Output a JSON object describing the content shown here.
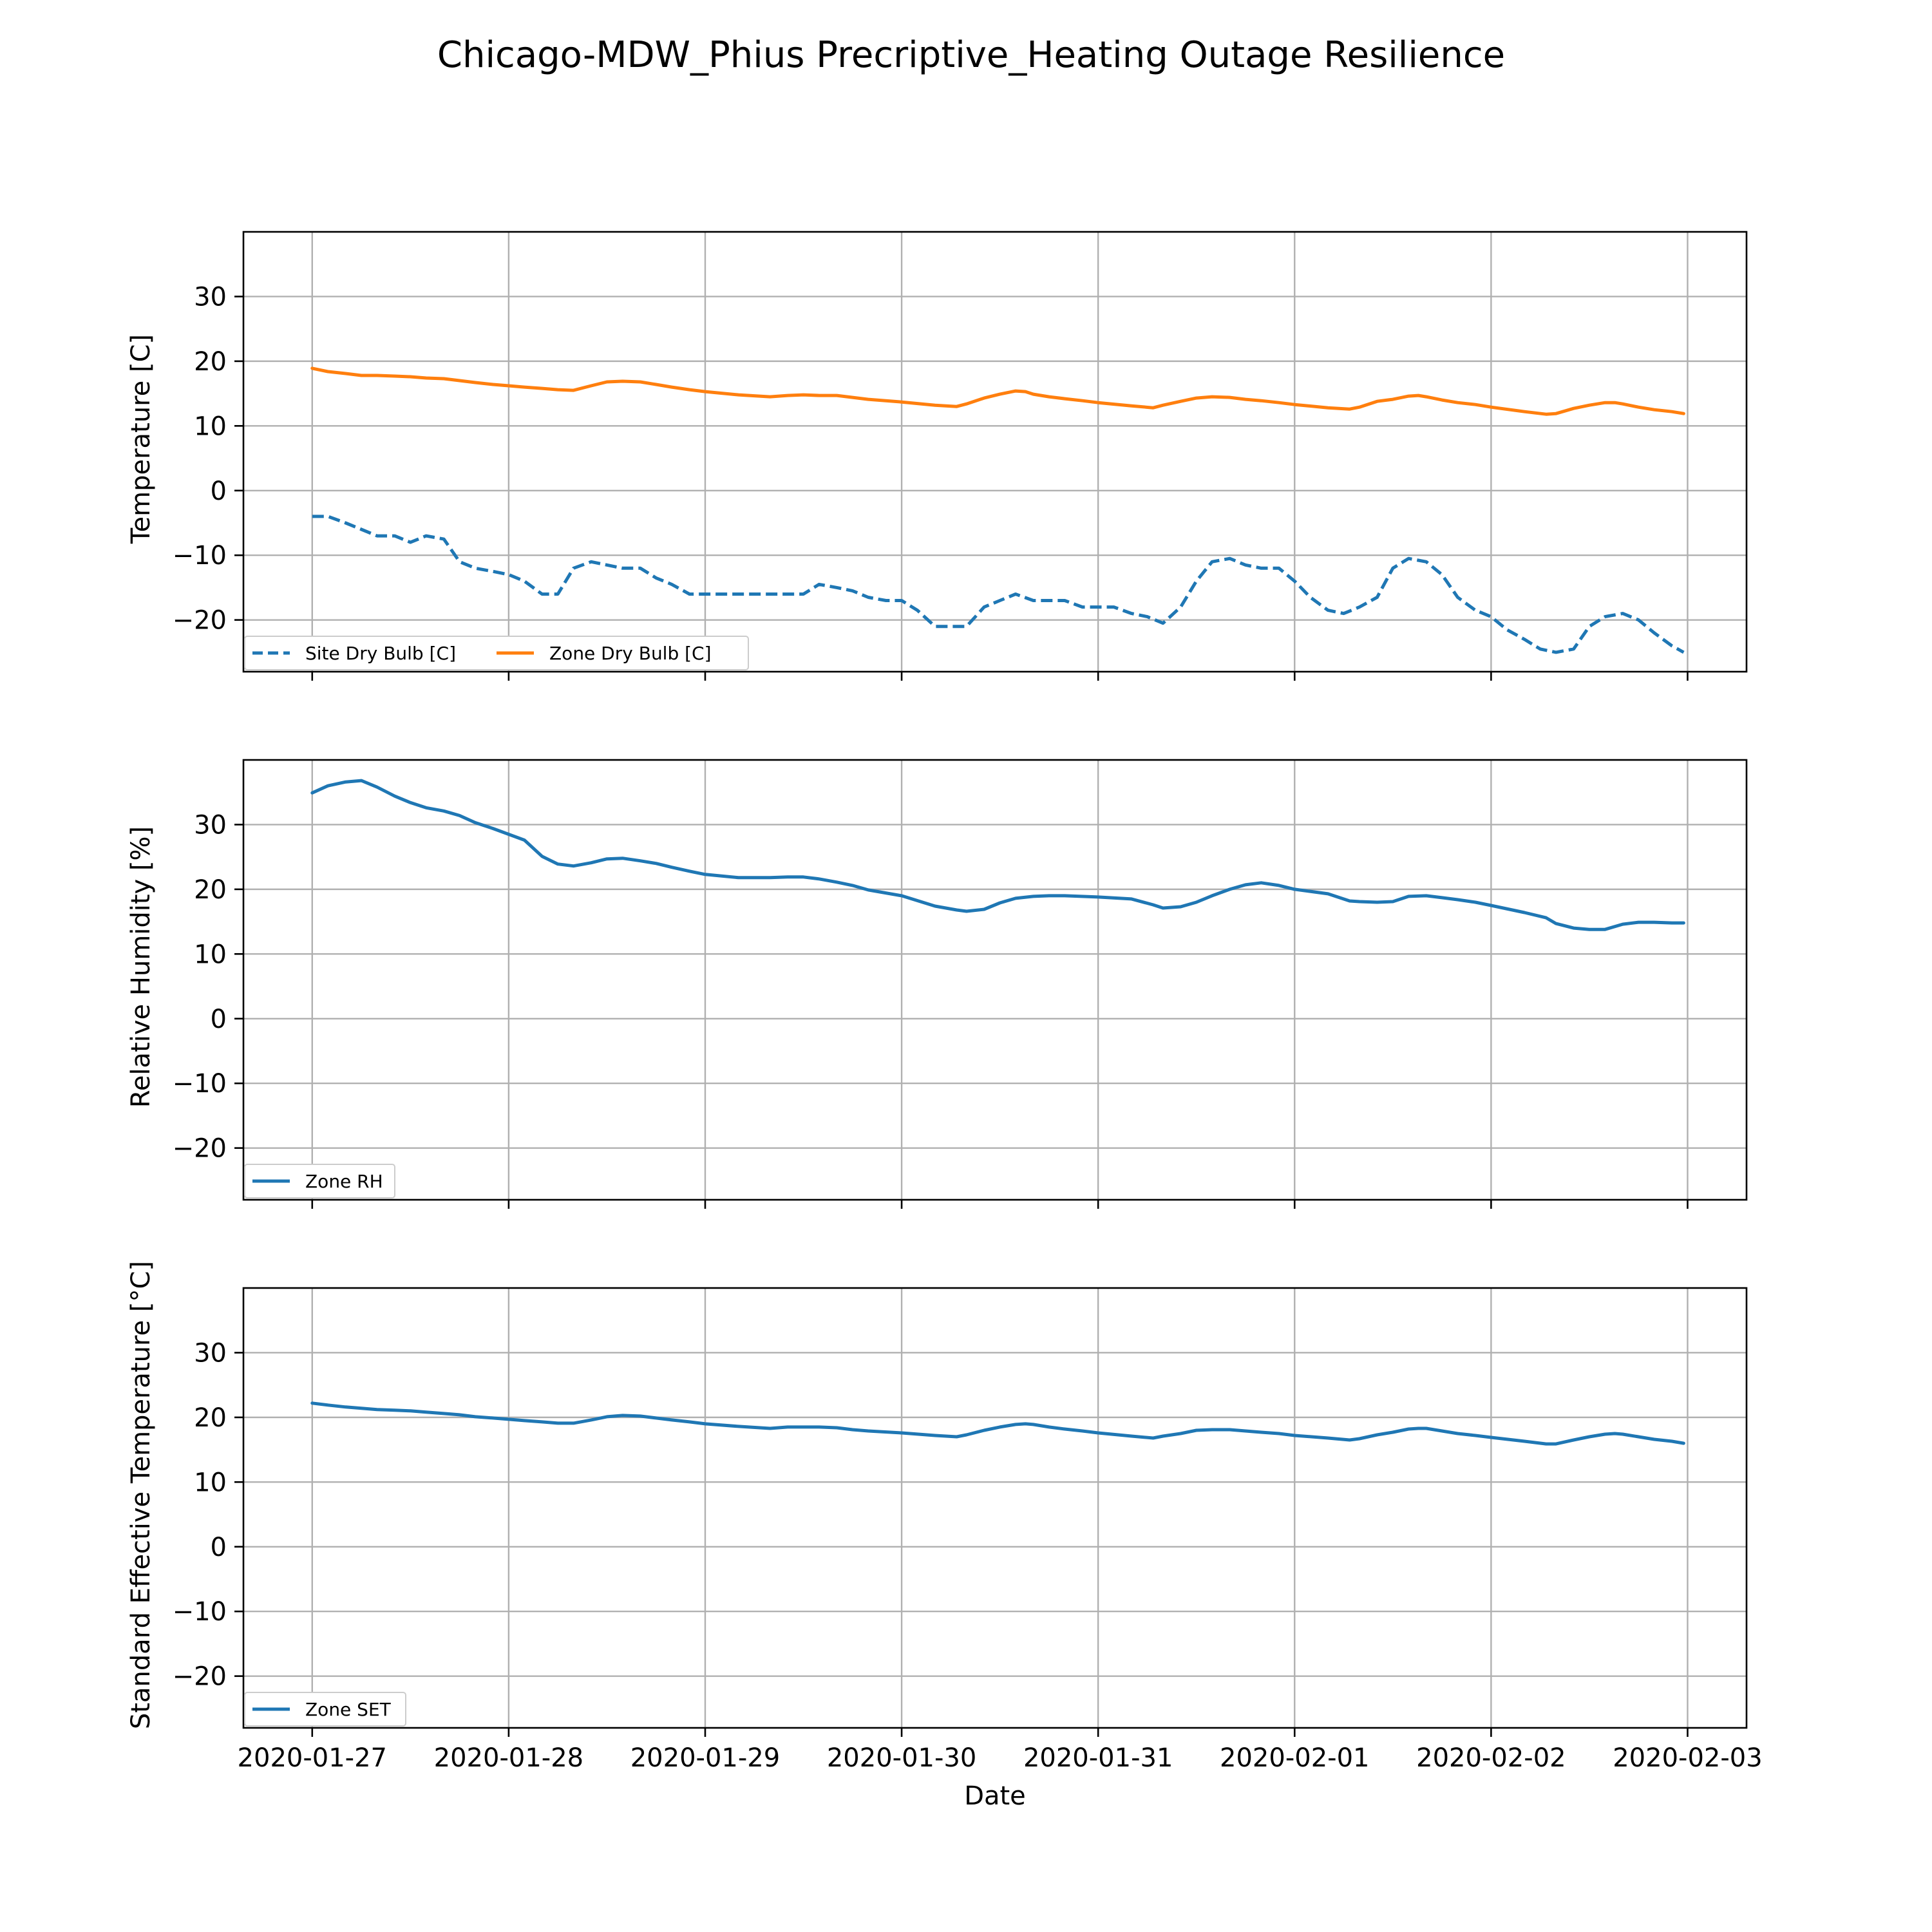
{
  "chart_data": {
    "title": "Chicago-MDW_Phius Precriptive_Heating Outage Resilience",
    "type": "line",
    "xlabel": "Date",
    "x_ticks": [
      "2020-01-27",
      "2020-01-28",
      "2020-01-29",
      "2020-01-30",
      "2020-01-31",
      "2020-02-01",
      "2020-02-02",
      "2020-02-03"
    ],
    "x_range_days": [
      -0.35,
      7.3
    ],
    "grid": true,
    "legend_placement": "lower-left",
    "panels": [
      {
        "ylabel": "Temperature [C]",
        "ylim": [
          -28,
          40
        ],
        "y_ticks": [
          -20,
          -10,
          0,
          10,
          20,
          30
        ],
        "y_tick_labels": [
          "−20",
          "−10",
          "0",
          "10",
          "20",
          "30"
        ],
        "legend_ncol": 2,
        "series": [
          {
            "name": "Site Dry Bulb [C]",
            "color": "#1f77b4",
            "dash": "dashed",
            "x_days": [
              0,
              0.08,
              0.17,
              0.25,
              0.33,
              0.42,
              0.5,
              0.58,
              0.67,
              0.75,
              0.83,
              0.92,
              1.0,
              1.08,
              1.17,
              1.25,
              1.33,
              1.42,
              1.5,
              1.58,
              1.67,
              1.75,
              1.83,
              1.92,
              2.0,
              2.17,
              2.33,
              2.5,
              2.58,
              2.67,
              2.75,
              2.83,
              2.92,
              3.0,
              3.08,
              3.17,
              3.25,
              3.33,
              3.42,
              3.5,
              3.58,
              3.67,
              3.75,
              3.83,
              3.92,
              4.0,
              4.08,
              4.17,
              4.25,
              4.33,
              4.42,
              4.5,
              4.58,
              4.67,
              4.75,
              4.83,
              4.92,
              5.0,
              5.08,
              5.17,
              5.25,
              5.33,
              5.42,
              5.5,
              5.58,
              5.67,
              5.75,
              5.83,
              5.92,
              6.0,
              6.08,
              6.17,
              6.25,
              6.33,
              6.42,
              6.5,
              6.58,
              6.67,
              6.75,
              6.83,
              6.92,
              6.98
            ],
            "y": [
              -4,
              -4,
              -5,
              -6,
              -7,
              -7,
              -8,
              -7,
              -7.5,
              -11,
              -12,
              -12.5,
              -13,
              -14,
              -16,
              -16,
              -12,
              -11,
              -11.5,
              -12,
              -12,
              -13.5,
              -14.5,
              -16,
              -16,
              -16,
              -16,
              -16,
              -14.5,
              -15,
              -15.5,
              -16.5,
              -17,
              -17,
              -18.5,
              -21,
              -21,
              -21,
              -18,
              -17,
              -16,
              -17,
              -17,
              -17,
              -18,
              -18,
              -18,
              -19,
              -19.5,
              -20.5,
              -18,
              -14,
              -11,
              -10.5,
              -11.5,
              -12,
              -12,
              -14,
              -16.5,
              -18.5,
              -19,
              -18,
              -16.5,
              -12,
              -10.5,
              -11,
              -13,
              -16.5,
              -18.5,
              -19.5,
              -21.5,
              -23,
              -24.5,
              -25,
              -24.5,
              -21,
              -19.5,
              -19,
              -20,
              -22,
              -24,
              -25
            ]
          },
          {
            "name": "Zone Dry Bulb [C]",
            "color": "#ff7f0e",
            "dash": "solid",
            "x_days": [
              0,
              0.08,
              0.17,
              0.25,
              0.33,
              0.42,
              0.5,
              0.58,
              0.67,
              0.75,
              0.83,
              0.92,
              1.0,
              1.08,
              1.17,
              1.25,
              1.33,
              1.42,
              1.5,
              1.58,
              1.67,
              1.75,
              1.83,
              1.92,
              2.0,
              2.17,
              2.33,
              2.42,
              2.5,
              2.58,
              2.67,
              2.75,
              2.83,
              3.0,
              3.17,
              3.28,
              3.33,
              3.42,
              3.5,
              3.58,
              3.63,
              3.67,
              3.75,
              3.83,
              3.92,
              4.0,
              4.17,
              4.28,
              4.33,
              4.42,
              4.5,
              4.58,
              4.67,
              4.75,
              4.83,
              4.92,
              5.0,
              5.17,
              5.28,
              5.33,
              5.42,
              5.5,
              5.58,
              5.63,
              5.67,
              5.75,
              5.83,
              5.92,
              6.0,
              6.17,
              6.28,
              6.33,
              6.42,
              6.5,
              6.58,
              6.63,
              6.67,
              6.75,
              6.83,
              6.92,
              6.98
            ],
            "y": [
              18.9,
              18.4,
              18.1,
              17.8,
              17.8,
              17.7,
              17.6,
              17.4,
              17.3,
              17.0,
              16.7,
              16.4,
              16.2,
              16.0,
              15.8,
              15.6,
              15.5,
              16.2,
              16.8,
              16.9,
              16.8,
              16.4,
              16.0,
              15.6,
              15.3,
              14.8,
              14.5,
              14.7,
              14.8,
              14.7,
              14.7,
              14.4,
              14.1,
              13.7,
              13.2,
              13.0,
              13.4,
              14.3,
              14.9,
              15.4,
              15.3,
              14.9,
              14.5,
              14.2,
              13.9,
              13.6,
              13.1,
              12.8,
              13.2,
              13.8,
              14.3,
              14.5,
              14.4,
              14.1,
              13.9,
              13.6,
              13.3,
              12.8,
              12.6,
              12.9,
              13.8,
              14.1,
              14.6,
              14.7,
              14.5,
              14.0,
              13.6,
              13.3,
              12.9,
              12.2,
              11.8,
              11.9,
              12.7,
              13.2,
              13.6,
              13.6,
              13.4,
              12.9,
              12.5,
              12.2,
              11.9
            ]
          }
        ]
      },
      {
        "ylabel": "Relative Humidity [%]",
        "ylim": [
          -28,
          40
        ],
        "y_ticks": [
          -20,
          -10,
          0,
          10,
          20,
          30
        ],
        "y_tick_labels": [
          "−20",
          "−10",
          "0",
          "10",
          "20",
          "30"
        ],
        "legend_ncol": 1,
        "series": [
          {
            "name": "Zone RH",
            "color": "#1f77b4",
            "dash": "solid",
            "x_days": [
              0,
              0.08,
              0.17,
              0.25,
              0.33,
              0.42,
              0.5,
              0.58,
              0.67,
              0.75,
              0.83,
              0.92,
              1.0,
              1.08,
              1.17,
              1.25,
              1.33,
              1.42,
              1.5,
              1.58,
              1.67,
              1.75,
              1.83,
              1.92,
              2.0,
              2.17,
              2.33,
              2.42,
              2.5,
              2.58,
              2.67,
              2.75,
              2.83,
              3.0,
              3.17,
              3.28,
              3.33,
              3.42,
              3.5,
              3.58,
              3.67,
              3.75,
              3.83,
              4.0,
              4.17,
              4.28,
              4.33,
              4.42,
              4.5,
              4.58,
              4.67,
              4.75,
              4.83,
              4.92,
              5.0,
              5.17,
              5.28,
              5.33,
              5.42,
              5.5,
              5.58,
              5.67,
              5.75,
              5.83,
              5.92,
              6.0,
              6.17,
              6.28,
              6.33,
              6.42,
              6.5,
              6.58,
              6.67,
              6.75,
              6.83,
              6.92,
              6.98
            ],
            "y": [
              34.9,
              36.0,
              36.6,
              36.8,
              35.8,
              34.4,
              33.4,
              32.6,
              32.1,
              31.4,
              30.3,
              29.4,
              28.5,
              27.6,
              25.1,
              23.9,
              23.6,
              24.1,
              24.7,
              24.8,
              24.4,
              24.0,
              23.4,
              22.8,
              22.3,
              21.8,
              21.8,
              21.9,
              21.9,
              21.6,
              21.1,
              20.6,
              19.9,
              19.0,
              17.4,
              16.8,
              16.6,
              16.9,
              17.9,
              18.6,
              18.9,
              19.0,
              19.0,
              18.8,
              18.5,
              17.6,
              17.1,
              17.3,
              18.0,
              19.0,
              20.0,
              20.7,
              21.0,
              20.6,
              20.0,
              19.3,
              18.2,
              18.1,
              18.0,
              18.1,
              18.9,
              19.0,
              18.7,
              18.4,
              18.0,
              17.5,
              16.4,
              15.6,
              14.7,
              14.0,
              13.8,
              13.8,
              14.6,
              14.9,
              14.9,
              14.8,
              14.8
            ]
          }
        ]
      },
      {
        "ylabel": "Standard Effective Temperature [°C]",
        "ylim": [
          -28,
          40
        ],
        "y_ticks": [
          -20,
          -10,
          0,
          10,
          20,
          30
        ],
        "y_tick_labels": [
          "−20",
          "−10",
          "0",
          "10",
          "20",
          "30"
        ],
        "legend_ncol": 1,
        "series": [
          {
            "name": "Zone SET",
            "color": "#1f77b4",
            "dash": "solid",
            "x_days": [
              0,
              0.08,
              0.17,
              0.25,
              0.33,
              0.42,
              0.5,
              0.58,
              0.67,
              0.75,
              0.83,
              0.92,
              1.0,
              1.08,
              1.17,
              1.25,
              1.33,
              1.42,
              1.5,
              1.58,
              1.67,
              1.75,
              1.83,
              1.92,
              2.0,
              2.17,
              2.33,
              2.42,
              2.5,
              2.58,
              2.67,
              2.75,
              2.83,
              3.0,
              3.17,
              3.28,
              3.33,
              3.42,
              3.5,
              3.58,
              3.63,
              3.67,
              3.75,
              3.83,
              3.92,
              4.0,
              4.17,
              4.28,
              4.33,
              4.42,
              4.5,
              4.58,
              4.67,
              4.75,
              4.83,
              4.92,
              5.0,
              5.17,
              5.28,
              5.33,
              5.42,
              5.5,
              5.58,
              5.63,
              5.67,
              5.75,
              5.83,
              5.92,
              6.0,
              6.17,
              6.28,
              6.33,
              6.42,
              6.5,
              6.58,
              6.63,
              6.67,
              6.75,
              6.83,
              6.92,
              6.98
            ],
            "y": [
              22.2,
              21.9,
              21.6,
              21.4,
              21.2,
              21.1,
              21.0,
              20.8,
              20.6,
              20.4,
              20.1,
              19.9,
              19.7,
              19.5,
              19.3,
              19.1,
              19.1,
              19.6,
              20.1,
              20.3,
              20.2,
              19.9,
              19.6,
              19.3,
              19.0,
              18.6,
              18.3,
              18.5,
              18.5,
              18.5,
              18.4,
              18.1,
              17.9,
              17.6,
              17.2,
              17.0,
              17.3,
              18.0,
              18.5,
              18.9,
              19.0,
              18.9,
              18.5,
              18.2,
              17.9,
              17.6,
              17.1,
              16.8,
              17.1,
              17.5,
              18.0,
              18.1,
              18.1,
              17.9,
              17.7,
              17.5,
              17.2,
              16.8,
              16.5,
              16.7,
              17.3,
              17.7,
              18.2,
              18.3,
              18.3,
              17.9,
              17.5,
              17.2,
              16.9,
              16.3,
              15.9,
              15.9,
              16.5,
              17.0,
              17.4,
              17.5,
              17.4,
              17.0,
              16.6,
              16.3,
              16.0
            ]
          }
        ]
      }
    ]
  }
}
